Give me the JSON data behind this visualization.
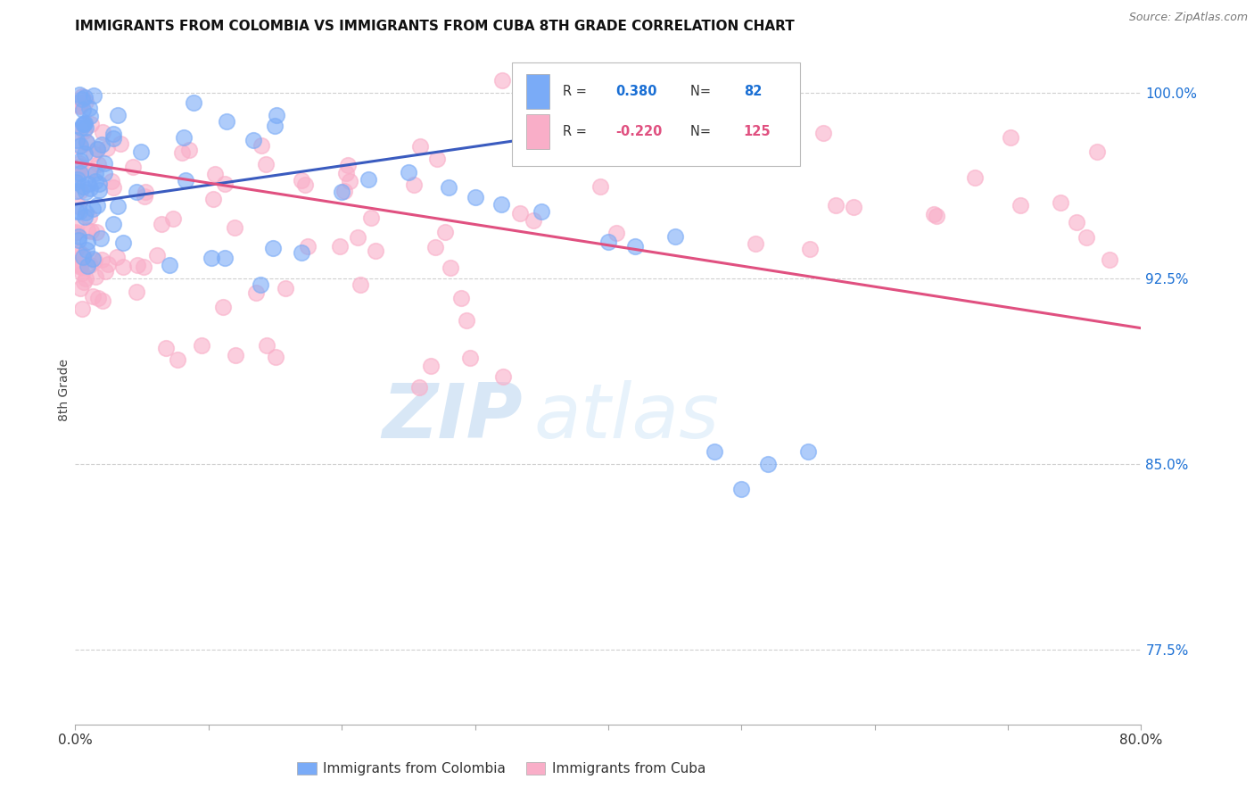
{
  "title": "IMMIGRANTS FROM COLOMBIA VS IMMIGRANTS FROM CUBA 8TH GRADE CORRELATION CHART",
  "source": "Source: ZipAtlas.com",
  "ylabel": "8th Grade",
  "xlim": [
    0.0,
    0.8
  ],
  "ylim": [
    0.745,
    1.015
  ],
  "colombia_color": "#7aabf7",
  "cuba_color": "#f9aec8",
  "colombia_R": 0.38,
  "colombia_N": 82,
  "cuba_R": -0.22,
  "cuba_N": 125,
  "colombia_line_color": "#3a5bbf",
  "cuba_line_color": "#e05080",
  "watermark_zip": "ZIP",
  "watermark_atlas": "atlas",
  "ytick_positions": [
    0.775,
    0.8,
    0.825,
    0.85,
    0.875,
    0.9,
    0.925,
    0.95,
    0.975,
    1.0
  ],
  "ytick_labels": [
    "77.5%",
    "",
    "",
    "85.0%",
    "",
    "",
    "92.5%",
    "",
    "",
    "100.0%"
  ],
  "xtick_positions": [
    0.0,
    0.1,
    0.2,
    0.3,
    0.4,
    0.5,
    0.6,
    0.7,
    0.8
  ],
  "xtick_labels": [
    "0.0%",
    "",
    "",
    "",
    "",
    "",
    "",
    "",
    "80.0%"
  ]
}
